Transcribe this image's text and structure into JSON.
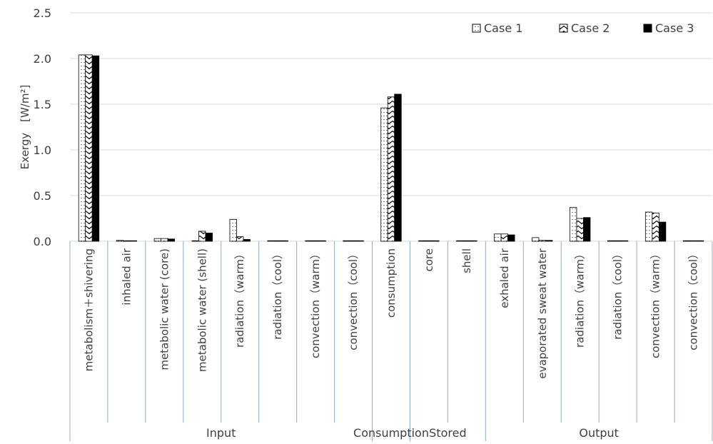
{
  "chart_data": {
    "type": "bar",
    "ylabel": "Exergy　[W/m²]",
    "ylim": [
      0,
      2.5
    ],
    "yticks": [
      "0.0",
      "0.5",
      "1.0",
      "1.5",
      "2.0",
      "2.5"
    ],
    "grid": true,
    "legend_position": "top-right",
    "categories": [
      "metabolism＋shivering",
      "inhaled air",
      "metabolic water (core)",
      "metabolic water (shell)",
      "radiation（warm）",
      "radiation（cool）",
      "convection（warm）",
      "convection（cool）",
      "consumption",
      "core",
      "shell",
      "exhaled air",
      "evaporated sweat water",
      "radiation（warm）",
      "radiation（cool）",
      "convection（warm）",
      "convection（cool）"
    ],
    "groups": [
      {
        "label": "Input",
        "count": 8
      },
      {
        "label": "Consumption",
        "count": 1
      },
      {
        "label": "Stored",
        "count": 2
      },
      {
        "label": "Output",
        "count": 6
      }
    ],
    "series": [
      {
        "name": "Case 1",
        "pattern": "dotted",
        "values": [
          2.04,
          0.01,
          0.03,
          0.0,
          0.24,
          0.0,
          0.0,
          0.0,
          1.46,
          0.005,
          0.0,
          0.08,
          0.04,
          0.37,
          0.0,
          0.32,
          0.0
        ]
      },
      {
        "name": "Case 2",
        "pattern": "wave",
        "values": [
          2.04,
          0.005,
          0.03,
          0.11,
          0.05,
          0.0,
          0.0,
          0.0,
          1.58,
          0.005,
          0.005,
          0.08,
          0.01,
          0.25,
          0.0,
          0.31,
          0.0
        ]
      },
      {
        "name": "Case 3",
        "pattern": "solid",
        "values": [
          2.03,
          0.005,
          0.025,
          0.09,
          0.02,
          0.0,
          0.0,
          0.0,
          1.61,
          0.0,
          0.005,
          0.07,
          0.01,
          0.26,
          0.0,
          0.21,
          0.0
        ]
      }
    ],
    "colors": {
      "axis": "#d9d9d9",
      "group_divider": "#8eaccd",
      "bar_fill": "#000000",
      "text": "#404040"
    }
  }
}
